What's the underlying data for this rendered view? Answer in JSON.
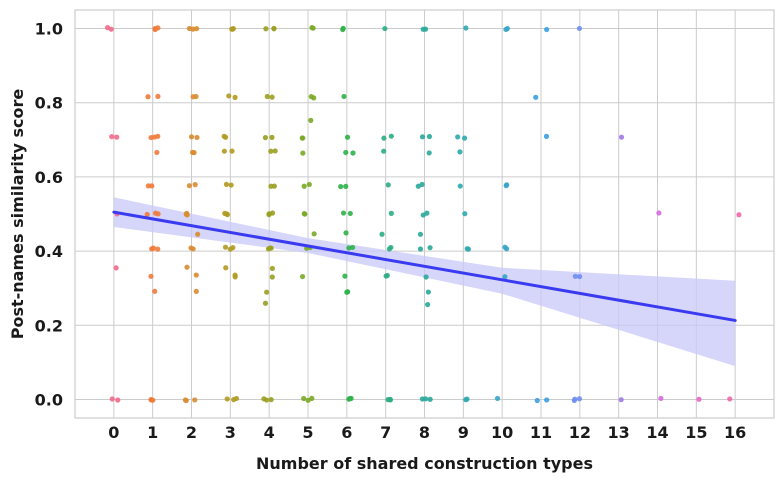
{
  "chart_data": {
    "type": "scatter",
    "title": "",
    "xlabel": "Number of shared construction types",
    "ylabel": "Post-names similarity score",
    "xlim": [
      -1,
      17
    ],
    "ylim": [
      -0.05,
      1.05
    ],
    "xticks": [
      "0",
      "1",
      "2",
      "3",
      "4",
      "5",
      "6",
      "7",
      "8",
      "9",
      "10",
      "11",
      "12",
      "13",
      "14",
      "15",
      "16"
    ],
    "yticks": [
      "0.0",
      "0.2",
      "0.4",
      "0.6",
      "0.8",
      "1.0"
    ],
    "grid": true,
    "colors": {
      "0": "#f06a8a",
      "1": "#f07a3a",
      "2": "#d98c30",
      "3": "#b09a20",
      "4": "#9aa020",
      "5": "#7aaa25",
      "6": "#2eb24a",
      "7": "#2cae80",
      "8": "#2aa89a",
      "9": "#2fa8b0",
      "10": "#35a4c8",
      "11": "#3a9ee0",
      "12": "#6f8ef0",
      "13": "#a07ae8",
      "14": "#d46ae0",
      "15": "#e866c8",
      "16": "#ee68a8"
    },
    "series": [
      {
        "x": 0,
        "y": [
          1.0,
          1.0,
          0.707,
          0.707,
          0.5,
          0.354,
          0.0,
          0.0
        ]
      },
      {
        "x": 1,
        "y": [
          1.0,
          1.0,
          1.0,
          0.816,
          0.816,
          0.707,
          0.707,
          0.707,
          0.667,
          0.577,
          0.577,
          0.5,
          0.5,
          0.5,
          0.408,
          0.408,
          0.408,
          0.333,
          0.289,
          0.0,
          0.0,
          0.0
        ]
      },
      {
        "x": 2,
        "y": [
          1.0,
          1.0,
          1.0,
          0.816,
          0.816,
          0.707,
          0.707,
          0.667,
          0.667,
          0.577,
          0.577,
          0.5,
          0.5,
          0.5,
          0.447,
          0.408,
          0.408,
          0.354,
          0.333,
          0.289,
          0.0,
          0.0,
          0.0
        ]
      },
      {
        "x": 3,
        "y": [
          1.0,
          1.0,
          1.0,
          0.816,
          0.816,
          0.707,
          0.707,
          0.667,
          0.667,
          0.577,
          0.577,
          0.5,
          0.5,
          0.5,
          0.408,
          0.408,
          0.408,
          0.354,
          0.333,
          0.333,
          0.0,
          0.0,
          0.0
        ]
      },
      {
        "x": 4,
        "y": [
          1.0,
          1.0,
          1.0,
          0.816,
          0.816,
          0.707,
          0.707,
          0.667,
          0.667,
          0.577,
          0.577,
          0.5,
          0.5,
          0.5,
          0.408,
          0.408,
          0.408,
          0.354,
          0.333,
          0.289,
          0.258,
          0.0,
          0.0,
          0.0
        ]
      },
      {
        "x": 5,
        "y": [
          1.0,
          1.0,
          0.816,
          0.816,
          0.75,
          0.707,
          0.707,
          0.667,
          0.577,
          0.577,
          0.5,
          0.5,
          0.447,
          0.408,
          0.408,
          0.333,
          0.0,
          0.0,
          0.0
        ]
      },
      {
        "x": 6,
        "y": [
          1.0,
          1.0,
          0.816,
          0.707,
          0.667,
          0.667,
          0.577,
          0.577,
          0.5,
          0.5,
          0.447,
          0.408,
          0.408,
          0.333,
          0.289,
          0.289,
          0.0,
          0.0,
          0.0
        ]
      },
      {
        "x": 7,
        "y": [
          1.0,
          0.707,
          0.707,
          0.667,
          0.577,
          0.5,
          0.447,
          0.408,
          0.408,
          0.333,
          0.333,
          0.0,
          0.0,
          0.0
        ]
      },
      {
        "x": 8,
        "y": [
          1.0,
          1.0,
          0.707,
          0.707,
          0.667,
          0.577,
          0.577,
          0.5,
          0.5,
          0.447,
          0.408,
          0.408,
          0.333,
          0.289,
          0.258,
          0.0,
          0.0,
          0.0
        ]
      },
      {
        "x": 9,
        "y": [
          1.0,
          0.707,
          0.707,
          0.667,
          0.577,
          0.5,
          0.408,
          0.408,
          0.0,
          0.0
        ]
      },
      {
        "x": 10,
        "y": [
          1.0,
          1.0,
          0.577,
          0.577,
          0.408,
          0.408,
          0.333,
          0.0
        ]
      },
      {
        "x": 11,
        "y": [
          1.0,
          0.816,
          0.707,
          0.0,
          0.0
        ]
      },
      {
        "x": 12,
        "y": [
          1.0,
          0.333,
          0.333,
          0.0,
          0.0,
          0.0
        ]
      },
      {
        "x": 13,
        "y": [
          0.707,
          0.0
        ]
      },
      {
        "x": 14,
        "y": [
          0.5,
          0.0
        ]
      },
      {
        "x": 15,
        "y": [
          0.0
        ]
      },
      {
        "x": 16,
        "y": [
          0.5,
          0.0
        ]
      }
    ],
    "regression": {
      "color": "#3a3af0",
      "band_color": "#c8c8f8",
      "line": [
        [
          0,
          0.505
        ],
        [
          16,
          0.213
        ]
      ],
      "ci_lower": [
        [
          0,
          0.465
        ],
        [
          5,
          0.395
        ],
        [
          10,
          0.285
        ],
        [
          16,
          0.09
        ]
      ],
      "ci_upper": [
        [
          0,
          0.545
        ],
        [
          5,
          0.435
        ],
        [
          10,
          0.355
        ],
        [
          16,
          0.32
        ]
      ]
    }
  }
}
